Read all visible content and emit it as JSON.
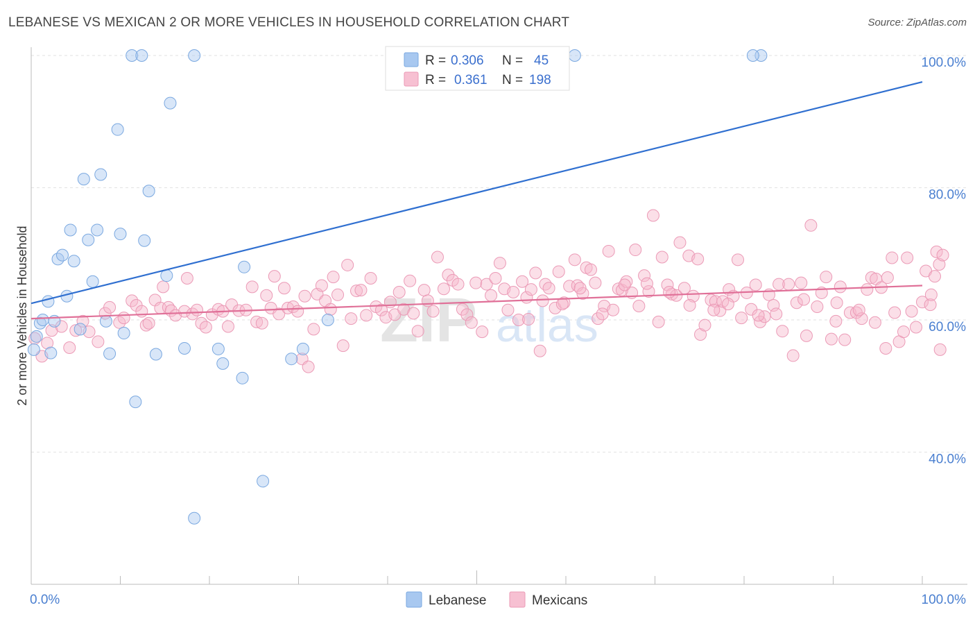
{
  "title": "LEBANESE VS MEXICAN 2 OR MORE VEHICLES IN HOUSEHOLD CORRELATION CHART",
  "source": "Source: ZipAtlas.com",
  "watermark": {
    "zip": "ZIP",
    "atlas": "atlas"
  },
  "legend": {
    "r_label": "R =",
    "n_label": "N =",
    "lebanese": {
      "r": "0.306",
      "n": "45"
    },
    "mexicans": {
      "r": "0.361",
      "n": "198"
    }
  },
  "chart_data": {
    "type": "scatter",
    "title": "LEBANESE VS MEXICAN 2 OR MORE VEHICLES IN HOUSEHOLD CORRELATION CHART",
    "xlabel": "",
    "ylabel": "2 or more Vehicles in Household",
    "xlim": [
      0,
      100
    ],
    "ylim": [
      20,
      100
    ],
    "x_tick_labels": [
      "0.0%",
      "100.0%"
    ],
    "y_tick_labels": [
      "40.0%",
      "60.0%",
      "80.0%",
      "100.0%"
    ],
    "y_ticks": [
      40,
      60,
      80,
      100
    ],
    "grid": true,
    "legend_position": "top-center",
    "colors": {
      "lebanese": "#a8c8f0",
      "lebanese_line": "#2f6fd0",
      "mexicans": "#f7b9cc",
      "mexicans_line": "#e07098"
    },
    "series": [
      {
        "name": "Lebanese",
        "trend": {
          "x": [
            0,
            100
          ],
          "y": [
            62.5,
            96
          ]
        },
        "points": [
          [
            0.3,
            55.5
          ],
          [
            0.6,
            57.5
          ],
          [
            1,
            59.5
          ],
          [
            1.3,
            60
          ],
          [
            1.9,
            62.8
          ],
          [
            2.2,
            55
          ],
          [
            2.6,
            59.8
          ],
          [
            3,
            69.2
          ],
          [
            3.5,
            69.8
          ],
          [
            4,
            63.6
          ],
          [
            4.4,
            73.6
          ],
          [
            4.8,
            68.9
          ],
          [
            5.5,
            58.6
          ],
          [
            5.9,
            81.3
          ],
          [
            6.4,
            72.1
          ],
          [
            6.9,
            65.8
          ],
          [
            7.4,
            73.6
          ],
          [
            7.8,
            82
          ],
          [
            8.4,
            59.8
          ],
          [
            8.8,
            54.9
          ],
          [
            9.7,
            88.8
          ],
          [
            10,
            73
          ],
          [
            10.4,
            58
          ],
          [
            11.3,
            100
          ],
          [
            11.7,
            47.6
          ],
          [
            12.4,
            100
          ],
          [
            12.7,
            72
          ],
          [
            13.2,
            79.5
          ],
          [
            14,
            54.8
          ],
          [
            15.2,
            66.7
          ],
          [
            15.6,
            92.8
          ],
          [
            17.2,
            55.7
          ],
          [
            18.3,
            100
          ],
          [
            18.3,
            30
          ],
          [
            21,
            55.6
          ],
          [
            21.5,
            53.4
          ],
          [
            23.7,
            51.2
          ],
          [
            23.9,
            68
          ],
          [
            26,
            35.6
          ],
          [
            29.2,
            54.1
          ],
          [
            30.5,
            55.6
          ],
          [
            33.3,
            60
          ],
          [
            81.9,
            100
          ],
          [
            81,
            100
          ],
          [
            61,
            100
          ]
        ]
      },
      {
        "name": "Mexicans",
        "trend": {
          "x": [
            0,
            100
          ],
          "y": [
            60.2,
            65.2
          ]
        },
        "points": [
          [
            0.4,
            57.2
          ],
          [
            1.2,
            54.5
          ],
          [
            1.8,
            56.5
          ],
          [
            2.3,
            58.4
          ],
          [
            3.4,
            59
          ],
          [
            4.3,
            55.8
          ],
          [
            5,
            58.4
          ],
          [
            5.8,
            59.8
          ],
          [
            6.5,
            58.2
          ],
          [
            7.5,
            56.7
          ],
          [
            8.3,
            61
          ],
          [
            8.8,
            61.9
          ],
          [
            9.9,
            59.6
          ],
          [
            10.4,
            60.3
          ],
          [
            11.3,
            62.9
          ],
          [
            11.8,
            62.2
          ],
          [
            12.4,
            61.3
          ],
          [
            12.9,
            59.2
          ],
          [
            13.2,
            59.5
          ],
          [
            13.9,
            63
          ],
          [
            14.5,
            61.8
          ],
          [
            14.8,
            65
          ],
          [
            15.4,
            61.9
          ],
          [
            15.7,
            61.4
          ],
          [
            16.2,
            60.7
          ],
          [
            17.2,
            61.3
          ],
          [
            17.5,
            66.3
          ],
          [
            18.1,
            60.9
          ],
          [
            18.6,
            61.5
          ],
          [
            19.1,
            59.5
          ],
          [
            19.6,
            58.9
          ],
          [
            20.3,
            60.8
          ],
          [
            21,
            61.6
          ],
          [
            21.5,
            61.3
          ],
          [
            22.1,
            59
          ],
          [
            22.5,
            62.3
          ],
          [
            23.3,
            61.4
          ],
          [
            24.1,
            61.5
          ],
          [
            24.8,
            65
          ],
          [
            25.3,
            59.7
          ],
          [
            25.9,
            59.5
          ],
          [
            26.4,
            63.7
          ],
          [
            26.9,
            61.8
          ],
          [
            27.3,
            66.6
          ],
          [
            27.8,
            60.9
          ],
          [
            28.4,
            64.8
          ],
          [
            28.8,
            61.8
          ],
          [
            29.4,
            62
          ],
          [
            29.9,
            61.3
          ],
          [
            30.4,
            54.1
          ],
          [
            30.7,
            63.6
          ],
          [
            31.1,
            52.9
          ],
          [
            31.7,
            58.6
          ],
          [
            32.1,
            63.9
          ],
          [
            32.6,
            65.2
          ],
          [
            33,
            62.9
          ],
          [
            33.6,
            61.6
          ],
          [
            33.9,
            66.5
          ],
          [
            34.4,
            63.8
          ],
          [
            35,
            56.1
          ],
          [
            35.5,
            68.3
          ],
          [
            35.9,
            60.2
          ],
          [
            36.5,
            64.4
          ],
          [
            37,
            64.5
          ],
          [
            37.6,
            60.7
          ],
          [
            38.1,
            66.3
          ],
          [
            38.7,
            62
          ],
          [
            39.3,
            61.5
          ],
          [
            39.8,
            60.4
          ],
          [
            40.3,
            62.7
          ],
          [
            40.8,
            60.8
          ],
          [
            41.3,
            64.2
          ],
          [
            41.8,
            61.6
          ],
          [
            42.5,
            65.9
          ],
          [
            42.9,
            61
          ],
          [
            43.4,
            58.3
          ],
          [
            44.1,
            64.5
          ],
          [
            44.5,
            62.9
          ],
          [
            45.1,
            61.3
          ],
          [
            45.6,
            69.5
          ],
          [
            46.3,
            64.7
          ],
          [
            46.8,
            66.8
          ],
          [
            47.3,
            66
          ],
          [
            47.9,
            65.4
          ],
          [
            48.4,
            61.6
          ],
          [
            48.9,
            60.8
          ],
          [
            49.4,
            59.6
          ],
          [
            49.9,
            65.6
          ],
          [
            50.6,
            58.2
          ],
          [
            51.1,
            65.4
          ],
          [
            51.6,
            63.7
          ],
          [
            52.1,
            66.3
          ],
          [
            52.6,
            68.6
          ],
          [
            53.1,
            64.7
          ],
          [
            53.5,
            61.5
          ],
          [
            54.1,
            64.2
          ],
          [
            54.7,
            60
          ],
          [
            55.1,
            65.8
          ],
          [
            55.6,
            63.4
          ],
          [
            56.1,
            64.6
          ],
          [
            56.6,
            67.1
          ],
          [
            57.1,
            55.3
          ],
          [
            57.7,
            65.4
          ],
          [
            58.1,
            64.8
          ],
          [
            58.8,
            61.8
          ],
          [
            59.2,
            67.3
          ],
          [
            59.8,
            62.6
          ],
          [
            60.4,
            65.1
          ],
          [
            61,
            69.1
          ],
          [
            61.3,
            65.2
          ],
          [
            61.9,
            64
          ],
          [
            62.3,
            67.9
          ],
          [
            62.8,
            67.6
          ],
          [
            63.3,
            65.6
          ],
          [
            63.6,
            60.2
          ],
          [
            64.3,
            62.1
          ],
          [
            64.8,
            70.4
          ],
          [
            65.3,
            61.5
          ],
          [
            65.9,
            64.7
          ],
          [
            66.3,
            64.5
          ],
          [
            66.8,
            65.8
          ],
          [
            67.4,
            64.1
          ],
          [
            67.8,
            70.6
          ],
          [
            68.2,
            62.1
          ],
          [
            68.8,
            66.7
          ],
          [
            69.3,
            64.3
          ],
          [
            69.8,
            75.8
          ],
          [
            70.4,
            59.7
          ],
          [
            70.8,
            69.5
          ],
          [
            71.4,
            65.3
          ],
          [
            71.9,
            63.9
          ],
          [
            72.4,
            63.7
          ],
          [
            72.8,
            71.7
          ],
          [
            73.3,
            64.8
          ],
          [
            73.8,
            69.7
          ],
          [
            74.3,
            63.6
          ],
          [
            74.8,
            69.2
          ],
          [
            75.1,
            57.8
          ],
          [
            75.6,
            59.2
          ],
          [
            76.3,
            63
          ],
          [
            76.8,
            62.8
          ],
          [
            77.3,
            61.4
          ],
          [
            77.6,
            62.8
          ],
          [
            78.3,
            64.6
          ],
          [
            78.8,
            63.6
          ],
          [
            79.3,
            69.1
          ],
          [
            79.7,
            60.3
          ],
          [
            80.3,
            64.1
          ],
          [
            80.8,
            61.6
          ],
          [
            81.3,
            65.3
          ],
          [
            81.8,
            59.7
          ],
          [
            82.3,
            60.5
          ],
          [
            82.8,
            63.8
          ],
          [
            83.3,
            62.2
          ],
          [
            83.9,
            65.4
          ],
          [
            84.3,
            58.3
          ],
          [
            85,
            65.4
          ],
          [
            85.5,
            54.6
          ],
          [
            85.9,
            62.6
          ],
          [
            86.4,
            65.6
          ],
          [
            87,
            57.6
          ],
          [
            87.5,
            74.3
          ],
          [
            88.2,
            62
          ],
          [
            88.7,
            64.1
          ],
          [
            89.2,
            66.5
          ],
          [
            89.8,
            57.1
          ],
          [
            90.3,
            59.8
          ],
          [
            90.8,
            65
          ],
          [
            91.3,
            57
          ],
          [
            91.9,
            61.1
          ],
          [
            92.6,
            61.1
          ],
          [
            93.2,
            60.2
          ],
          [
            93.8,
            64.6
          ],
          [
            94.3,
            66.4
          ],
          [
            94.8,
            66.2
          ],
          [
            95.4,
            64.9
          ],
          [
            96.1,
            66.4
          ],
          [
            96.9,
            61.1
          ],
          [
            97.4,
            56.7
          ],
          [
            97.9,
            58.2
          ],
          [
            98.3,
            69.4
          ],
          [
            98.8,
            61.3
          ],
          [
            99.3,
            58.9
          ],
          [
            100,
            62.7
          ],
          [
            100.4,
            67.4
          ],
          [
            100.9,
            62.3
          ],
          [
            101.4,
            66.6
          ],
          [
            102,
            55.5
          ],
          [
            101,
            63.8
          ],
          [
            101.6,
            70.3
          ],
          [
            101.9,
            68.4
          ],
          [
            102.3,
            69.8
          ],
          [
            96.6,
            69.4
          ],
          [
            95.9,
            55.7
          ],
          [
            94.7,
            59.6
          ],
          [
            92.9,
            61.5
          ],
          [
            90.4,
            62.6
          ],
          [
            86.7,
            63.1
          ],
          [
            83.6,
            60.9
          ],
          [
            81.6,
            60.7
          ],
          [
            78.2,
            62.4
          ],
          [
            76.6,
            61.5
          ],
          [
            73.9,
            62.2
          ],
          [
            71.6,
            64.2
          ],
          [
            69.1,
            65.5
          ],
          [
            66.6,
            65.3
          ],
          [
            64.1,
            60.9
          ],
          [
            61.6,
            64.8
          ],
          [
            59.6,
            62.4
          ],
          [
            57.4,
            62.9
          ],
          [
            55.8,
            60.1
          ]
        ]
      }
    ]
  },
  "bottom_legend": {
    "lebanese": "Lebanese",
    "mexicans": "Mexicans"
  }
}
